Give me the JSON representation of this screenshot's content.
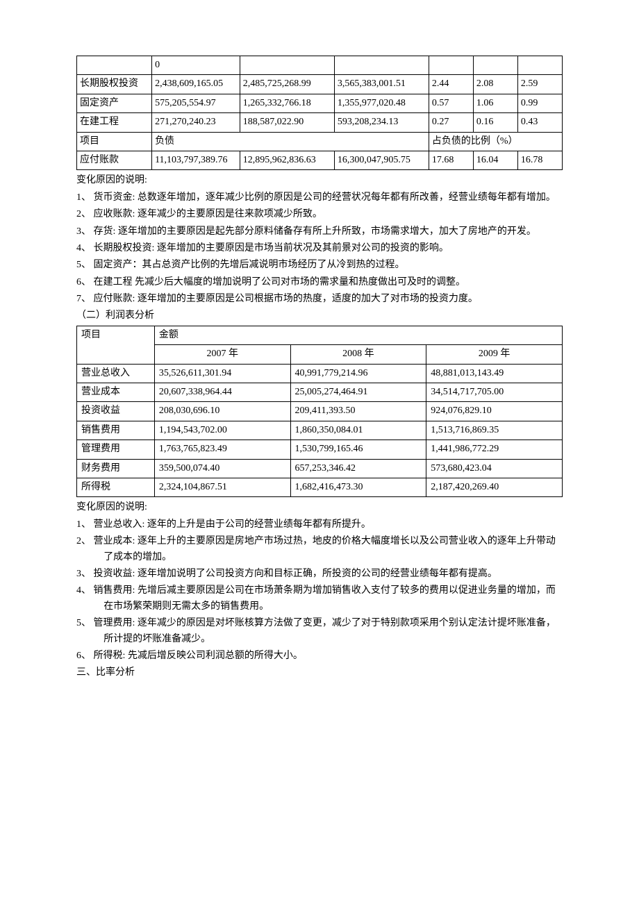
{
  "table1": {
    "continuation_row": {
      "c1": "",
      "c2": "0",
      "c3": "",
      "c4": "",
      "c5": "",
      "c6": "",
      "c7": ""
    },
    "rows": [
      {
        "item": "长期股权投资",
        "v1": "2,438,609,165.05",
        "v2": "2,485,725,268.99",
        "v3": "3,565,383,001.51",
        "p1": "2.44",
        "p2": "2.08",
        "p3": "2.59"
      },
      {
        "item": "固定资产",
        "v1": "575,205,554.97",
        "v2": "1,265,332,766.18",
        "v3": "1,355,977,020.48",
        "p1": "0.57",
        "p2": "1.06",
        "p3": "0.99"
      },
      {
        "item": "在建工程",
        "v1": "271,270,240.23",
        "v2": "188,587,022.90",
        "v3": "593,208,234.13",
        "p1": "0.27",
        "p2": "0.16",
        "p3": "0.43"
      }
    ],
    "header_row": {
      "item_label": "项目",
      "liab_label": "负债",
      "ratio_label": "占负债的比例（%）"
    },
    "liab_row": {
      "item": "应付账款",
      "v1": "11,103,797,389.76",
      "v2": "12,895,962,836.63",
      "v3": "16,300,047,905.75",
      "p1": "17.68",
      "p2": "16.04",
      "p3": "16.78"
    }
  },
  "notes1_title": "变化原因的说明:",
  "notes1": [
    "1、 货币资金: 总数逐年增加，逐年减少比例的原因是公司的经营状况每年都有所改善，经营业绩每年都有增加。",
    "2、 应收账款: 逐年减少的主要原因是往来款项减少所致。",
    "3、 存货: 逐年增加的主要原因是起先部分原料储备存有所上升所致，市场需求增大，加大了房地产的开发。",
    "4、 长期股权投资: 逐年增加的主要原因是市场当前状况及其前景对公司的投资的影响。",
    "5、 固定资产：其占总资产比例的先增后减说明市场经历了从冷到热的过程。",
    "6、 在建工程 先减少后大幅度的增加说明了公司对市场的需求量和热度做出可及时的调整。",
    "7、 应付账款: 逐年增加的主要原因是公司根据市场的热度，适度的加大了对市场的投资力度。"
  ],
  "section2_title": "（二）利润表分析",
  "table2": {
    "header": {
      "item_label": "项目",
      "amount_label": "金额",
      "y1": "2007 年",
      "y2": "2008 年",
      "y3": "2009 年"
    },
    "rows": [
      {
        "item": "营业总收入",
        "v1": "35,526,611,301.94",
        "v2": "40,991,779,214.96",
        "v3": "48,881,013,143.49"
      },
      {
        "item": "营业成本",
        "v1": "20,607,338,964.44",
        "v2": "25,005,274,464.91",
        "v3": "34,514,717,705.00"
      },
      {
        "item": "投资收益",
        "v1": "208,030,696.10",
        "v2": "209,411,393.50",
        "v3": "924,076,829.10"
      },
      {
        "item": "销售费用",
        "v1": "1,194,543,702.00",
        "v2": "1,860,350,084.01",
        "v3": "1,513,716,869.35"
      },
      {
        "item": "管理费用",
        "v1": "1,763,765,823.49",
        "v2": "1,530,799,165.46",
        "v3": "1,441,986,772.29"
      },
      {
        "item": "财务费用",
        "v1": "359,500,074.40",
        "v2": "657,253,346.42",
        "v3": "573,680,423.04"
      },
      {
        "item": "所得税",
        "v1": "2,324,104,867.51",
        "v2": "1,682,416,473.30",
        "v3": "2,187,420,269.40"
      }
    ]
  },
  "notes2_title": "变化原因的说明:",
  "notes2": [
    "1、 营业总收入: 逐年的上升是由于公司的经营业绩每年都有所提升。",
    "2、 营业成本: 逐年上升的主要原因是房地产市场过热，地皮的价格大幅度增长以及公司营业收入的逐年上升带动了成本的增加。",
    "3、 投资收益: 逐年增加说明了公司投资方向和目标正确，所投资的公司的经营业绩每年都有提高。",
    "4、 销售费用: 先增后减主要原因是公司在市场萧条期为增加销售收入支付了较多的费用以促进业务量的增加，而在市场繁荣期则无需太多的销售费用。",
    "5、 管理费用: 逐年减少的原因是对坏账核算方法做了变更，减少了对于特别款项采用个别认定法计提坏账准备，所计提的坏账准备减少。",
    "6、 所得税: 先减后增反映公司利润总额的所得大小。"
  ],
  "section3_title": "三、比率分析",
  "styles": {
    "text_color": "#000000",
    "background_color": "#ffffff",
    "border_color": "#000000",
    "font_family": "SimSun",
    "base_font_size": 14
  }
}
